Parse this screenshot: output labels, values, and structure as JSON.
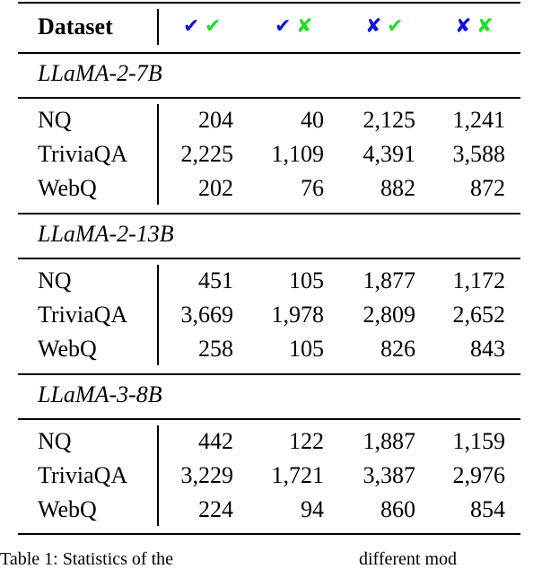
{
  "table": {
    "header": {
      "label": "Dataset",
      "columns": [
        [
          "✔",
          "✔"
        ],
        [
          "✔",
          "✘"
        ],
        [
          "✘",
          "✔"
        ],
        [
          "✘",
          "✘"
        ]
      ]
    },
    "sections": [
      {
        "title": "LLaMA-2-7B",
        "rows": [
          [
            "NQ",
            "204",
            "40",
            "2,125",
            "1,241"
          ],
          [
            "TriviaQA",
            "2,225",
            "1,109",
            "4,391",
            "3,588"
          ],
          [
            "WebQ",
            "202",
            "76",
            "882",
            "872"
          ]
        ]
      },
      {
        "title": "LLaMA-2-13B",
        "rows": [
          [
            "NQ",
            "451",
            "105",
            "1,877",
            "1,172"
          ],
          [
            "TriviaQA",
            "3,669",
            "1,978",
            "2,809",
            "2,652"
          ],
          [
            "WebQ",
            "258",
            "105",
            "826",
            "843"
          ]
        ]
      },
      {
        "title": "LLaMA-3-8B",
        "rows": [
          [
            "NQ",
            "442",
            "122",
            "1,887",
            "1,159"
          ],
          [
            "TriviaQA",
            "3,229",
            "1,721",
            "3,387",
            "2,976"
          ],
          [
            "WebQ",
            "224",
            "94",
            "860",
            "854"
          ]
        ]
      }
    ]
  },
  "caption": [
    "Table 1: Statistics of the",
    "different mod"
  ]
}
